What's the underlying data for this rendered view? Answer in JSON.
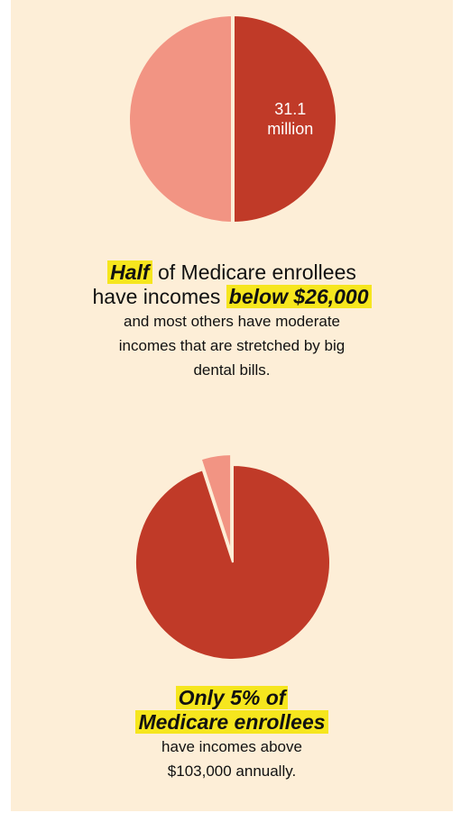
{
  "colors": {
    "background": "#fdeed7",
    "dark": "#c03a28",
    "light": "#f29483",
    "highlight": "#f6e61e",
    "text": "#111111",
    "label": "#ffffff"
  },
  "chart_data": [
    {
      "type": "pie",
      "slices": [
        {
          "value": 50,
          "color": "#c03a28",
          "label": [
            "31.1",
            "million"
          ]
        },
        {
          "value": 50,
          "color": "#f29483"
        }
      ]
    },
    {
      "type": "pie",
      "slices": [
        {
          "value": 5,
          "color": "#f29483",
          "exploded": true
        },
        {
          "value": 95,
          "color": "#c03a28"
        }
      ]
    }
  ],
  "caption1": {
    "highlight1": "Half",
    "text1": " of Medicare enrollees",
    "text2": "have incomes ",
    "highlight2": "below $26,000",
    "body": [
      "and most others have moderate",
      "incomes that are stretched by big",
      "dental bills."
    ]
  },
  "caption2": {
    "highlight_lines": [
      "Only 5% of",
      "Medicare enrollees"
    ],
    "body": [
      "have incomes above",
      "$103,000 annually."
    ]
  }
}
